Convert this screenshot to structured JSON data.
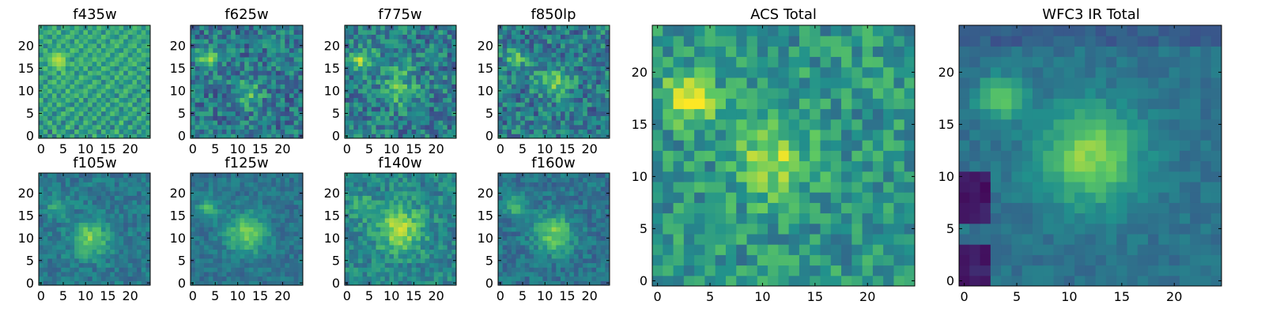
{
  "chart_data": [
    {
      "type": "heatmap",
      "title": "f435w",
      "xticks": [
        "0",
        "5",
        "10",
        "15",
        "20"
      ],
      "yticks": [
        "0",
        "5",
        "10",
        "15",
        "20"
      ],
      "xlim": [
        0,
        24
      ],
      "ylim": [
        0,
        24
      ],
      "grid": false,
      "z": [
        [
          0.55,
          0.4,
          0.62,
          0.35,
          0.7,
          0.48,
          0.52,
          0.66,
          0.41,
          0.58,
          0.6,
          0.37,
          0.72,
          0.5,
          0.44,
          0.63,
          0.55,
          0.48,
          0.69,
          0.4,
          0.57,
          0.61,
          0.45,
          0.52,
          0.58
        ],
        [
          0.48,
          0.66,
          0.3,
          0.71,
          0.55,
          0.62,
          0.45,
          0.38,
          0.7,
          0.52,
          0.47,
          0.64,
          0.58,
          0.36,
          0.68,
          0.49,
          0.6,
          0.73,
          0.42,
          0.56,
          0.51,
          0.38,
          0.65,
          0.47,
          0.6
        ],
        [
          0.62,
          0.45,
          0.57,
          0.68,
          0.4,
          0.51,
          0.74,
          0.6,
          0.33,
          0.65,
          0.55,
          0.49,
          0.62,
          0.7,
          0.41,
          0.58,
          0.35,
          0.64,
          0.52,
          0.47,
          0.69,
          0.55,
          0.4,
          0.61,
          0.5
        ],
        [
          0.4,
          0.58,
          0.72,
          0.44,
          0.61,
          0.36,
          0.57,
          0.69,
          0.53,
          0.46,
          0.71,
          0.59,
          0.38,
          0.55,
          0.66,
          0.42,
          0.63,
          0.51,
          0.75,
          0.44,
          0.37,
          0.62,
          0.56,
          0.48,
          0.67
        ],
        [
          0.57,
          0.63,
          0.41,
          0.55,
          0.68,
          0.59,
          0.43,
          0.52,
          0.67,
          0.39,
          0.6,
          0.54,
          0.7,
          0.45,
          0.58,
          0.64,
          0.48,
          0.4,
          0.57,
          0.68,
          0.53,
          0.46,
          0.72,
          0.59,
          0.42
        ],
        [
          0.66,
          0.49,
          0.59,
          0.38,
          0.54,
          0.72,
          0.61,
          0.47,
          0.58,
          0.7,
          0.44,
          0.62,
          0.51,
          0.67,
          0.39,
          0.55,
          0.71,
          0.59,
          0.46,
          0.52,
          0.64,
          0.58,
          0.43,
          0.69,
          0.55
        ],
        [
          0.44,
          0.7,
          0.53,
          0.62,
          0.47,
          0.41,
          0.66,
          0.73,
          0.5,
          0.57,
          0.63,
          0.4,
          0.59,
          0.54,
          0.72,
          0.48,
          0.57,
          0.65,
          0.4,
          0.61,
          0.49,
          0.71,
          0.6,
          0.37,
          0.63
        ],
        [
          0.59,
          0.52,
          0.68,
          0.45,
          0.73,
          0.6,
          0.5,
          0.39,
          0.64,
          0.48,
          0.56,
          0.69,
          0.43,
          0.62,
          0.51,
          0.7,
          0.44,
          0.53,
          0.67,
          0.58,
          0.72,
          0.42,
          0.55,
          0.64,
          0.46
        ],
        [
          0.71,
          0.4,
          0.55,
          0.64,
          0.57,
          0.52,
          0.69,
          0.58,
          0.45,
          0.72,
          0.39,
          0.61,
          0.66,
          0.48,
          0.59,
          0.42,
          0.63,
          0.71,
          0.5,
          0.45,
          0.56,
          0.67,
          0.38,
          0.59,
          0.7
        ],
        [
          0.5,
          0.64,
          0.46,
          0.71,
          0.42,
          0.67,
          0.55,
          0.62,
          0.7,
          0.53,
          0.66,
          0.47,
          0.58,
          0.73,
          0.44,
          0.61,
          0.52,
          0.39,
          0.68,
          0.63,
          0.41,
          0.58,
          0.66,
          0.49,
          0.54
        ],
        [
          0.63,
          0.57,
          0.72,
          0.49,
          0.6,
          0.44,
          0.75,
          0.51,
          0.58,
          0.62,
          0.7,
          0.55,
          0.45,
          0.6,
          0.68,
          0.53,
          0.47,
          0.66,
          0.57,
          0.72,
          0.6,
          0.44,
          0.52,
          0.71,
          0.45
        ],
        [
          0.46,
          0.69,
          0.51,
          0.58,
          0.66,
          0.63,
          0.48,
          0.7,
          0.55,
          0.45,
          0.59,
          0.72,
          0.63,
          0.5,
          0.57,
          0.74,
          0.6,
          0.55,
          0.43,
          0.59,
          0.68,
          0.62,
          0.57,
          0.4,
          0.66
        ],
        [
          0.58,
          0.43,
          0.67,
          0.73,
          0.52,
          0.7,
          0.59,
          0.46,
          0.69,
          0.61,
          0.53,
          0.48,
          0.71,
          0.64,
          0.4,
          0.59,
          0.69,
          0.48,
          0.62,
          0.51,
          0.47,
          0.7,
          0.44,
          0.63,
          0.52
        ],
        [
          0.67,
          0.61,
          0.4,
          0.56,
          0.7,
          0.54,
          0.65,
          0.6,
          0.52,
          0.74,
          0.64,
          0.58,
          0.5,
          0.44,
          0.67,
          0.62,
          0.45,
          0.73,
          0.55,
          0.66,
          0.58,
          0.51,
          0.69,
          0.57,
          0.41
        ],
        [
          0.41,
          0.55,
          0.64,
          0.69,
          0.46,
          0.76,
          0.58,
          0.67,
          0.43,
          0.57,
          0.47,
          0.7,
          0.62,
          0.68,
          0.55,
          0.48,
          0.64,
          0.56,
          0.72,
          0.42,
          0.7,
          0.63,
          0.46,
          0.55,
          0.68
        ],
        [
          0.6,
          0.72,
          0.53,
          0.62,
          0.78,
          0.7,
          0.49,
          0.55,
          0.66,
          0.5,
          0.72,
          0.42,
          0.57,
          0.51,
          0.73,
          0.66,
          0.52,
          0.41,
          0.6,
          0.69,
          0.53,
          0.45,
          0.62,
          0.71,
          0.5
        ],
        [
          0.52,
          0.47,
          0.7,
          0.8,
          0.85,
          0.82,
          0.63,
          0.72,
          0.57,
          0.68,
          0.61,
          0.66,
          0.49,
          0.7,
          0.46,
          0.58,
          0.71,
          0.64,
          0.49,
          0.57,
          0.64,
          0.72,
          0.54,
          0.44,
          0.61
        ],
        [
          0.68,
          0.6,
          0.74,
          0.86,
          0.9,
          0.84,
          0.57,
          0.44,
          0.62,
          0.71,
          0.55,
          0.59,
          0.73,
          0.62,
          0.67,
          0.5,
          0.55,
          0.69,
          0.62,
          0.48,
          0.71,
          0.58,
          0.66,
          0.6,
          0.47
        ],
        [
          0.45,
          0.63,
          0.66,
          0.78,
          0.83,
          0.73,
          0.69,
          0.61,
          0.5,
          0.59,
          0.68,
          0.48,
          0.64,
          0.55,
          0.61,
          0.72,
          0.47,
          0.58,
          0.73,
          0.65,
          0.44,
          0.61,
          0.53,
          0.69,
          0.63
        ],
        [
          0.57,
          0.7,
          0.48,
          0.64,
          0.58,
          0.62,
          0.51,
          0.74,
          0.67,
          0.46,
          0.62,
          0.71,
          0.56,
          0.69,
          0.49,
          0.63,
          0.67,
          0.51,
          0.45,
          0.68,
          0.59,
          0.49,
          0.72,
          0.57,
          0.52
        ],
        [
          0.64,
          0.41,
          0.59,
          0.53,
          0.71,
          0.47,
          0.66,
          0.55,
          0.6,
          0.73,
          0.5,
          0.64,
          0.68,
          0.43,
          0.71,
          0.55,
          0.6,
          0.73,
          0.56,
          0.52,
          0.66,
          0.7,
          0.48,
          0.62,
          0.67
        ],
        [
          0.49,
          0.66,
          0.71,
          0.47,
          0.62,
          0.68,
          0.58,
          0.43,
          0.72,
          0.55,
          0.66,
          0.52,
          0.47,
          0.66,
          0.58,
          0.44,
          0.69,
          0.62,
          0.7,
          0.47,
          0.57,
          0.63,
          0.59,
          0.45,
          0.55
        ],
        [
          0.7,
          0.55,
          0.44,
          0.66,
          0.5,
          0.59,
          0.72,
          0.64,
          0.48,
          0.61,
          0.57,
          0.69,
          0.6,
          0.54,
          0.73,
          0.61,
          0.52,
          0.46,
          0.64,
          0.71,
          0.43,
          0.56,
          0.68,
          0.62,
          0.59
        ],
        [
          0.53,
          0.62,
          0.68,
          0.58,
          0.73,
          0.45,
          0.52,
          0.69,
          0.61,
          0.47,
          0.72,
          0.46,
          0.65,
          0.59,
          0.42,
          0.68,
          0.57,
          0.65,
          0.49,
          0.6,
          0.68,
          0.61,
          0.5,
          0.67,
          0.48
        ],
        [
          0.61,
          0.48,
          0.57,
          0.7,
          0.42,
          0.64,
          0.6,
          0.5,
          0.67,
          0.58,
          0.45,
          0.63,
          0.52,
          0.71,
          0.6,
          0.49,
          0.63,
          0.58,
          0.68,
          0.44,
          0.53,
          0.7,
          0.62,
          0.46,
          0.64
        ]
      ]
    },
    {
      "type": "heatmap",
      "title": "f625w",
      "xticks": [
        "0",
        "5",
        "10",
        "15",
        "20"
      ],
      "yticks": [
        "0",
        "5",
        "10",
        "15",
        "20"
      ],
      "xlim": [
        0,
        24
      ],
      "ylim": [
        0,
        24
      ],
      "grid": false
    },
    {
      "type": "heatmap",
      "title": "f775w",
      "xticks": [
        "0",
        "5",
        "10",
        "15",
        "20"
      ],
      "yticks": [
        "0",
        "5",
        "10",
        "15",
        "20"
      ],
      "xlim": [
        0,
        24
      ],
      "ylim": [
        0,
        24
      ],
      "grid": false
    },
    {
      "type": "heatmap",
      "title": "f850lp",
      "xticks": [
        "0",
        "5",
        "10",
        "15",
        "20"
      ],
      "yticks": [
        "0",
        "5",
        "10",
        "15",
        "20"
      ],
      "xlim": [
        0,
        24
      ],
      "ylim": [
        0,
        24
      ],
      "grid": false
    },
    {
      "type": "heatmap",
      "title": "f105w",
      "xticks": [
        "0",
        "5",
        "10",
        "15",
        "20"
      ],
      "yticks": [
        "0",
        "5",
        "10",
        "15",
        "20"
      ],
      "xlim": [
        0,
        24
      ],
      "ylim": [
        0,
        24
      ],
      "grid": false
    },
    {
      "type": "heatmap",
      "title": "f125w",
      "xticks": [
        "0",
        "5",
        "10",
        "15",
        "20"
      ],
      "yticks": [
        "0",
        "5",
        "10",
        "15",
        "20"
      ],
      "xlim": [
        0,
        24
      ],
      "ylim": [
        0,
        24
      ],
      "grid": false
    },
    {
      "type": "heatmap",
      "title": "f140w",
      "xticks": [
        "0",
        "5",
        "10",
        "15",
        "20"
      ],
      "yticks": [
        "0",
        "5",
        "10",
        "15",
        "20"
      ],
      "xlim": [
        0,
        24
      ],
      "ylim": [
        0,
        24
      ],
      "grid": false
    },
    {
      "type": "heatmap",
      "title": "f160w",
      "xticks": [
        "0",
        "5",
        "10",
        "15",
        "20"
      ],
      "yticks": [
        "0",
        "5",
        "10",
        "15",
        "20"
      ],
      "xlim": [
        0,
        24
      ],
      "ylim": [
        0,
        24
      ],
      "grid": false
    },
    {
      "type": "heatmap",
      "title": "ACS Total",
      "xticks": [
        "0",
        "5",
        "10",
        "15",
        "20"
      ],
      "yticks": [
        "0",
        "5",
        "10",
        "15",
        "20"
      ],
      "xlim": [
        0,
        24
      ],
      "ylim": [
        0,
        24
      ],
      "grid": false
    },
    {
      "type": "heatmap",
      "title": "WFC3 IR Total",
      "xticks": [
        "0",
        "5",
        "10",
        "15",
        "20"
      ],
      "yticks": [
        "0",
        "5",
        "10",
        "15",
        "20"
      ],
      "xlim": [
        0,
        24
      ],
      "ylim": [
        0,
        24
      ],
      "grid": false
    }
  ],
  "colormap": {
    "name": "viridis",
    "stops": [
      "#440154",
      "#3b528b",
      "#21918c",
      "#5ec962",
      "#fde725"
    ]
  }
}
